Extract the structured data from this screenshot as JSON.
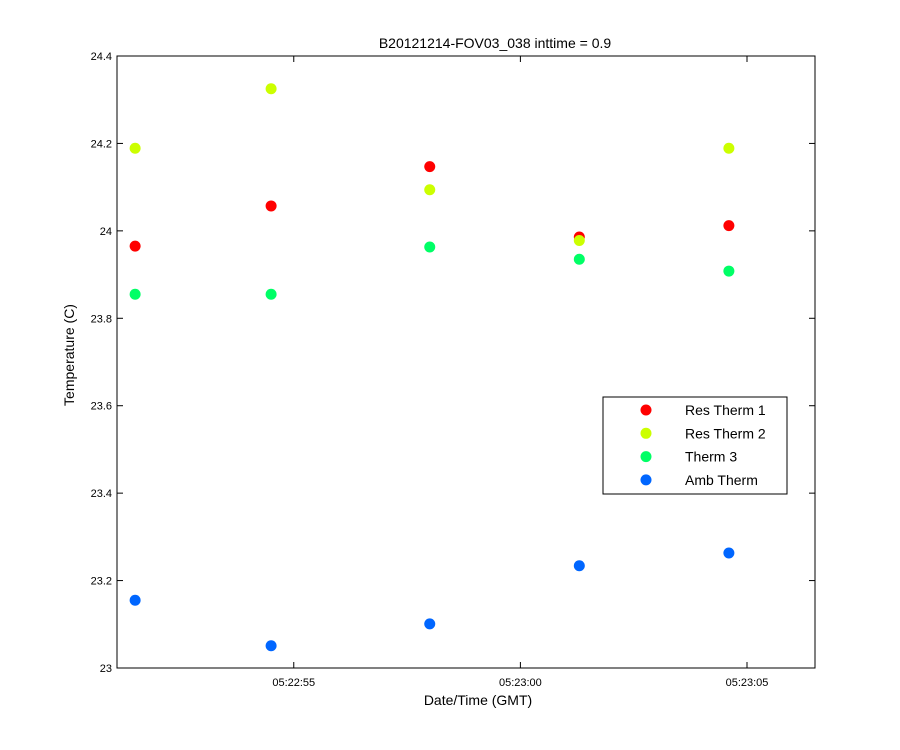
{
  "chart_data": {
    "type": "scatter",
    "title": "B20121214-FOV03_038 inttime = 0.9",
    "xlabel": "Date/Time (GMT)",
    "ylabel": "Temperature (C)",
    "x": [
      "05:22:51.5",
      "05:22:54.5",
      "05:22:58.0",
      "05:23:01.3",
      "05:23:04.6"
    ],
    "xlim": [
      "05:22:51.1",
      "05:23:06.5"
    ],
    "ylim": [
      23,
      24.4
    ],
    "x_ticks": [
      "05:22:55",
      "05:23:00",
      "05:23:05"
    ],
    "y_ticks": [
      23,
      23.2,
      23.4,
      23.6,
      23.8,
      24,
      24.2,
      24.4
    ],
    "grid": false,
    "legend_position": "right",
    "series": [
      {
        "name": "Res Therm 1",
        "color": "#ff0000",
        "values": [
          23.965,
          24.057,
          24.147,
          23.986,
          24.012
        ]
      },
      {
        "name": "Res Therm 2",
        "color": "#ccff00",
        "values": [
          24.189,
          24.325,
          24.094,
          23.978,
          24.189
        ]
      },
      {
        "name": "Therm 3",
        "color": "#00ff66",
        "values": [
          23.855,
          23.855,
          23.963,
          23.935,
          23.908
        ]
      },
      {
        "name": "Amb Therm",
        "color": "#0066ff",
        "values": [
          23.155,
          23.051,
          23.101,
          23.234,
          23.263
        ]
      }
    ]
  }
}
